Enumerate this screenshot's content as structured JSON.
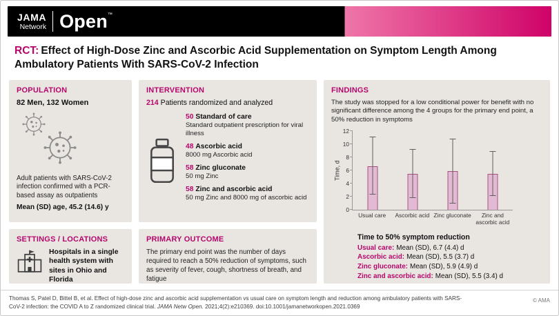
{
  "colors": {
    "accent_magenta": "#b5076b",
    "header_pink_light": "#ee76a8",
    "header_pink_dark": "#cf0368",
    "panel_gray": "#e9e6e2",
    "bar_fill": "#e3bad4",
    "bar_border": "#a4517e"
  },
  "header": {
    "jama": "JAMA",
    "network": "Network",
    "open": "Open",
    "tm": "™"
  },
  "title": {
    "tag": "RCT:",
    "text": "Effect of High-Dose Zinc and Ascorbic Acid Supplementation on Symptom Length Among Ambulatory Patients With SARS-CoV-2 Infection"
  },
  "population": {
    "heading": "POPULATION",
    "count_line": "82 Men, 132 Women",
    "description": "Adult patients with SARS-CoV-2 infection confirmed with a PCR-based assay as outpatients",
    "age_line": "Mean (SD) age, 45.2 (14.6) y"
  },
  "settings": {
    "heading": "SETTINGS / LOCATIONS",
    "text": "Hospitals in a single health system with sites in Ohio and Florida"
  },
  "intervention": {
    "heading": "INTERVENTION",
    "total": "214",
    "total_label": "Patients randomized and analyzed",
    "arms": [
      {
        "n": "50",
        "name": "Standard of care",
        "desc": "Standard outpatient prescription for viral illness"
      },
      {
        "n": "48",
        "name": "Ascorbic acid",
        "desc": "8000 mg Ascorbic acid"
      },
      {
        "n": "58",
        "name": "Zinc gluconate",
        "desc": "50 mg Zinc"
      },
      {
        "n": "58",
        "name": "Zinc and ascorbic acid",
        "desc": "50 mg Zinc and 8000 mg of ascorbic acid"
      }
    ]
  },
  "primary_outcome": {
    "heading": "PRIMARY OUTCOME",
    "text": "The primary end point was the number of days required to reach a 50% reduction of symptoms, such as severity of fever, cough, shortness of breath, and fatigue"
  },
  "findings": {
    "heading": "FINDINGS",
    "summary": "The study was stopped for a low conditional power for benefit with no significant difference among the 4 groups for the primary end point, a 50% reduction in symptoms",
    "results_title": "Time to 50% symptom reduction",
    "results": [
      {
        "label": "Usual care:",
        "value": "Mean (SD), 6.7 (4.4) d"
      },
      {
        "label": "Ascorbic acid:",
        "value": "Mean (SD), 5.5 (3.7) d"
      },
      {
        "label": "Zinc gluconate:",
        "value": "Mean (SD), 5.9 (4.9) d"
      },
      {
        "label": "Zinc and ascorbic acid:",
        "value": "Mean (SD), 5.5 (3.4) d"
      }
    ]
  },
  "chart_data": {
    "type": "bar",
    "title": "",
    "categories": [
      "Usual care",
      "Ascorbic acid",
      "Zinc gluconate",
      "Zinc and ascorbic acid"
    ],
    "values": [
      6.7,
      5.5,
      5.9,
      5.5
    ],
    "errors": [
      4.4,
      3.7,
      4.9,
      3.4
    ],
    "error_meaning": "mean ± SD",
    "xlabel": "",
    "ylabel": "Time, d",
    "ylim": [
      0,
      12
    ],
    "yticks": [
      0,
      2,
      4,
      6,
      8,
      10,
      12
    ],
    "grid": false,
    "legend": "none"
  },
  "footer": {
    "citation_a": "Thomas S, Patel D, Bittel B, et al. Effect of high-dose zinc and ascorbic acid supplementation vs usual care on symptom length and reduction among ambulatory patients with SARS-CoV-2 infection: the COVID A to Z randomized clinical trial. ",
    "citation_journal": "JAMA Netw Open.",
    "citation_b": " 2021;4(2):e210369. doi:10.1001/jamanetworkopen.2021.0369",
    "copyright": "© AMA"
  }
}
